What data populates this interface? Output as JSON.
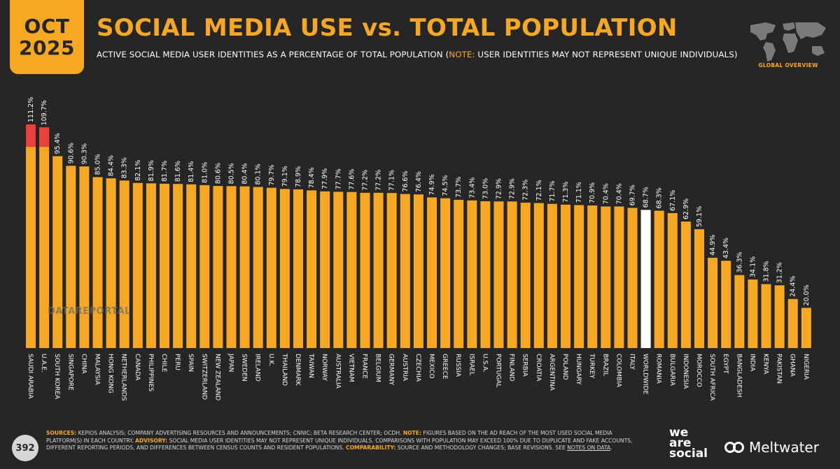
{
  "header": {
    "month": "OCT",
    "year": "2025",
    "title": "SOCIAL MEDIA USE vs. TOTAL POPULATION",
    "subtitle_main": "ACTIVE SOCIAL MEDIA USER IDENTITIES AS A PERCENTAGE OF TOTAL POPULATION (",
    "subtitle_note_label": "NOTE:",
    "subtitle_note_text": " USER IDENTITIES MAY NOT REPRESENT UNIQUE INDIVIDUALS)",
    "map_caption": "GLOBAL OVERVIEW"
  },
  "watermark": "DATAREPORTAL",
  "footer": {
    "page_number": "392",
    "sources_label": "SOURCES:",
    "sources_text": " KEPIOS ANALYSIS; COMPANY ADVERTISING RESOURCES AND ANNOUNCEMENTS; CNNIC; BETA RESEARCH CENTER; OCDH. ",
    "note_label": "NOTE:",
    "note_text": " FIGURES BASED ON THE AD REACH OF THE MOST USED SOCIAL MEDIA PLATFORM(S) IN EACH COUNTRY. ",
    "advisory_label": "ADVISORY:",
    "advisory_text": " SOCIAL MEDIA USER IDENTITIES MAY NOT REPRESENT UNIQUE INDIVIDUALS. COMPARISONS WITH POPULATION MAY EXCEED 100% DUE TO DUPLICATE AND FAKE ACCOUNTS, DIFFERENT REPORTING PERIODS, AND DIFFERENCES BETWEEN CENSUS COUNTS AND RESIDENT POPULATIONS. ",
    "comparability_label": "COMPARABILITY:",
    "comparability_text": " SOURCE AND METHODOLOGY CHANGES; BASE REVISIONS. SEE ",
    "notes_link": "NOTES ON DATA",
    "end": "."
  },
  "logos": {
    "was_line1": "we",
    "was_line2": "are",
    "was_line3": "social",
    "meltwater": "Meltwater"
  },
  "colors": {
    "background": "#262626",
    "bar": "#F7A823",
    "bar_overflow": "#E8403A",
    "worldwide": "#FFFFFF"
  },
  "chart_data": {
    "type": "bar",
    "categories": [
      "SAUDI ARABIA",
      "U.A.E.",
      "SOUTH KOREA",
      "SINGAPORE",
      "CHINA",
      "MALAYSIA",
      "HONG KONG",
      "NETHERLANDS",
      "CANADA",
      "PHILIPPINES",
      "CHILE",
      "PERU",
      "SPAIN",
      "SWITZERLAND",
      "NEW ZEALAND",
      "JAPAN",
      "SWEDEN",
      "IRELAND",
      "U.K.",
      "THAILAND",
      "DENMARK",
      "TAIWAN",
      "NORWAY",
      "AUSTRALIA",
      "VIETNAM",
      "FRANCE",
      "BELGIUM",
      "GERMANY",
      "AUSTRIA",
      "CZECHIA",
      "MEXICO",
      "GREECE",
      "RUSSIA",
      "ISRAEL",
      "U.S.A.",
      "PORTUGAL",
      "FINLAND",
      "SERBIA",
      "CROATIA",
      "ARGENTINA",
      "POLAND",
      "HUNGARY",
      "TURKEY",
      "BRAZIL",
      "COLOMBIA",
      "ITALY",
      "WORLDWIDE",
      "ROMANIA",
      "BULGARIA",
      "INDONESIA",
      "MOROCCO",
      "SOUTH AFRICA",
      "EGYPT",
      "BANGLADESH",
      "INDIA",
      "KENYA",
      "PAKISTAN",
      "GHANA",
      "NIGERIA"
    ],
    "values": [
      111.2,
      109.7,
      95.4,
      90.6,
      90.3,
      85.0,
      84.4,
      83.3,
      82.1,
      81.9,
      81.7,
      81.6,
      81.4,
      81.0,
      80.6,
      80.5,
      80.4,
      80.1,
      79.7,
      79.1,
      78.9,
      78.4,
      77.9,
      77.7,
      77.6,
      77.2,
      77.2,
      77.1,
      76.6,
      76.4,
      74.9,
      74.5,
      73.7,
      73.4,
      73.0,
      72.9,
      72.9,
      72.3,
      72.1,
      71.7,
      71.3,
      71.1,
      70.9,
      70.4,
      70.4,
      69.7,
      68.7,
      68.3,
      67.1,
      62.9,
      59.1,
      44.9,
      43.4,
      36.3,
      34.1,
      31.8,
      31.2,
      24.4,
      20.0
    ],
    "labels": [
      "111.2%",
      "109.7%",
      "95.4%",
      "90.6%",
      "90.3%",
      "85.0%",
      "84.4%",
      "83.3%",
      "82.1%",
      "81.9%",
      "81.7%",
      "81.6%",
      "81.4%",
      "81.0%",
      "80.6%",
      "80.5%",
      "80.4%",
      "80.1%",
      "79.7%",
      "79.1%",
      "78.9%",
      "78.4%",
      "77.9%",
      "77.7%",
      "77.6%",
      "77.2%",
      "77.2%",
      "77.1%",
      "76.6%",
      "76.4%",
      "74.9%",
      "74.5%",
      "73.7%",
      "73.4%",
      "73.0%",
      "72.9%",
      "72.9%",
      "72.3%",
      "72.1%",
      "71.7%",
      "71.3%",
      "71.1%",
      "70.9%",
      "70.4%",
      "70.4%",
      "69.7%",
      "68.7%",
      "68.3%",
      "67.1%",
      "62.9%",
      "59.1%",
      "44.9%",
      "43.4%",
      "36.3%",
      "34.1%",
      "31.8%",
      "31.2%",
      "24.4%",
      "20.0%"
    ],
    "highlight": "WORLDWIDE",
    "overflow_threshold": 100,
    "ylim": [
      0,
      111.2
    ]
  }
}
